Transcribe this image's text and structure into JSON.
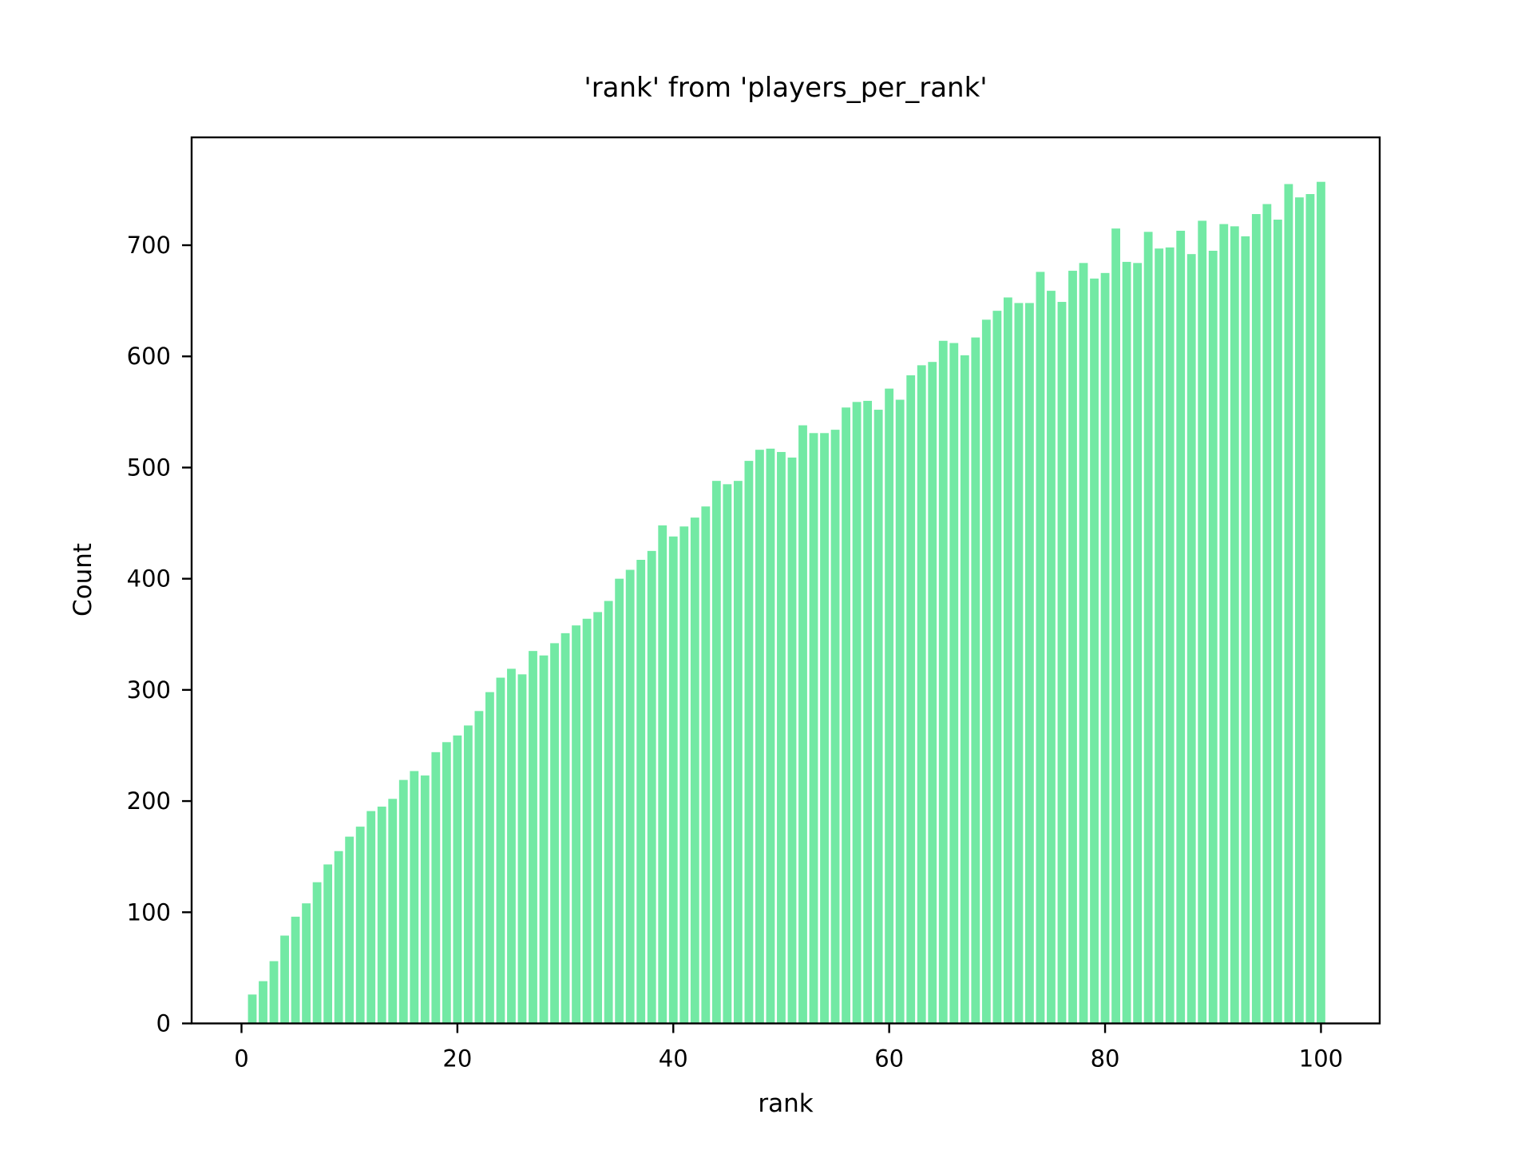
{
  "chart_data": {
    "type": "bar",
    "title": "'rank' from 'players_per_rank'",
    "xlabel": "rank",
    "ylabel": "Count",
    "bar_color": "#72e9a4",
    "axis_color": "#000000",
    "background_color": "#ffffff",
    "grid": false,
    "legend": false,
    "x_ticks": [
      0,
      20,
      40,
      60,
      80,
      100
    ],
    "y_ticks": [
      0,
      100,
      200,
      300,
      400,
      500,
      600,
      700
    ],
    "xlim": [
      -4.62,
      105.44
    ],
    "ylim": [
      0,
      797
    ],
    "bar_width": 0.8,
    "x": [
      1,
      2,
      3,
      4,
      5,
      6,
      7,
      8,
      9,
      10,
      11,
      12,
      13,
      14,
      15,
      16,
      17,
      18,
      19,
      20,
      21,
      22,
      23,
      24,
      25,
      26,
      27,
      28,
      29,
      30,
      31,
      32,
      33,
      34,
      35,
      36,
      37,
      38,
      39,
      40,
      41,
      42,
      43,
      44,
      45,
      46,
      47,
      48,
      49,
      50,
      51,
      52,
      53,
      54,
      55,
      56,
      57,
      58,
      59,
      60,
      61,
      62,
      63,
      64,
      65,
      66,
      67,
      68,
      69,
      70,
      71,
      72,
      73,
      74,
      75,
      76,
      77,
      78,
      79,
      80,
      81,
      82,
      83,
      84,
      85,
      86,
      87,
      88,
      89,
      90,
      91,
      92,
      93,
      94,
      95,
      96,
      97,
      98,
      99,
      100
    ],
    "values": [
      26,
      38,
      56,
      79,
      96,
      108,
      127,
      143,
      155,
      168,
      177,
      191,
      195,
      202,
      219,
      227,
      223,
      244,
      253,
      259,
      268,
      281,
      298,
      311,
      319,
      314,
      335,
      331,
      342,
      351,
      358,
      364,
      370,
      380,
      400,
      408,
      417,
      425,
      448,
      438,
      447,
      455,
      465,
      488,
      485,
      488,
      506,
      516,
      517,
      514,
      509,
      538,
      531,
      531,
      534,
      554,
      559,
      560,
      552,
      571,
      561,
      583,
      592,
      595,
      614,
      612,
      601,
      617,
      633,
      641,
      653,
      648,
      648,
      676,
      659,
      649,
      677,
      684,
      670,
      675,
      715,
      685,
      684,
      712,
      697,
      698,
      713,
      692,
      722,
      695,
      719,
      717,
      708,
      728,
      737,
      723,
      755,
      743,
      746,
      757
    ]
  }
}
